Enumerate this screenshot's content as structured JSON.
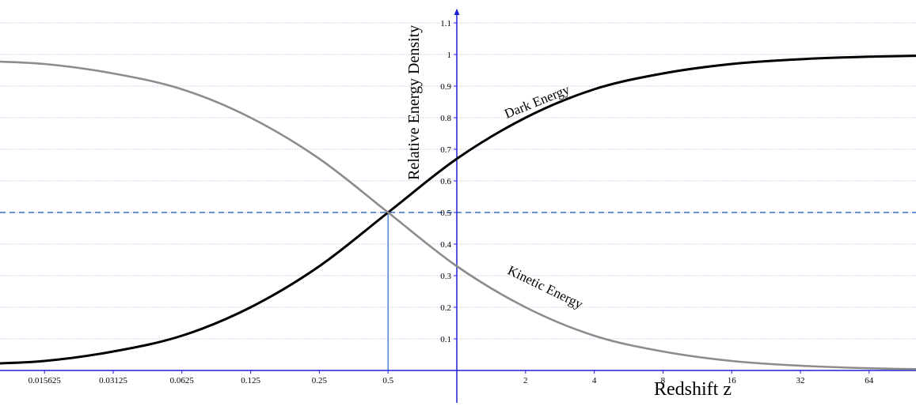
{
  "chart_data": {
    "type": "line",
    "xlabel": "Redshift z",
    "ylabel": "Relative Energy Density",
    "x_scale": "log2",
    "x_ticks": [
      0.015625,
      0.03125,
      0.0625,
      0.125,
      0.25,
      0.5,
      2,
      4,
      8,
      16,
      32,
      64
    ],
    "x_tick_labels": [
      "0.015625",
      "0.03125",
      "0.0625",
      "0.125",
      "0.25",
      "0.5",
      "2",
      "4",
      "8",
      "16",
      "32",
      "64"
    ],
    "y_ticks": [
      0.1,
      0.2,
      0.3,
      0.4,
      0.5,
      0.6,
      0.7,
      0.8,
      0.9,
      1,
      1.1
    ],
    "y_tick_labels": [
      "0.1",
      "0.2",
      "0.3",
      "0.4",
      "0.5",
      "0.6",
      "0.7",
      "0.8",
      "0.9",
      "1",
      "1.1"
    ],
    "ylim": [
      0,
      1.15
    ],
    "grid": true,
    "reference_line_y": 0.5,
    "reference_line_x": 0.5,
    "series": [
      {
        "name": "Dark Energy",
        "color": "#000000",
        "x": [
          0.0078125,
          0.015625,
          0.03125,
          0.0625,
          0.125,
          0.25,
          0.5,
          1,
          2,
          4,
          8,
          16,
          32,
          64,
          128
        ],
        "y": [
          0.02,
          0.03,
          0.06,
          0.11,
          0.2,
          0.33,
          0.5,
          0.67,
          0.8,
          0.89,
          0.94,
          0.97,
          0.985,
          0.993,
          0.997
        ]
      },
      {
        "name": "Kinetic Energy",
        "color": "#8c8c8c",
        "x": [
          0.0078125,
          0.015625,
          0.03125,
          0.0625,
          0.125,
          0.25,
          0.5,
          1,
          2,
          4,
          8,
          16,
          32,
          64,
          128
        ],
        "y": [
          0.98,
          0.97,
          0.94,
          0.89,
          0.8,
          0.67,
          0.5,
          0.33,
          0.2,
          0.11,
          0.06,
          0.03,
          0.015,
          0.007,
          0.003
        ]
      }
    ],
    "colors": {
      "axis": "#1f1fd6",
      "grid": "#b9b9e6",
      "reference_dashed": "#3a6fc2",
      "reference_vertical": "#4a86cf"
    }
  }
}
